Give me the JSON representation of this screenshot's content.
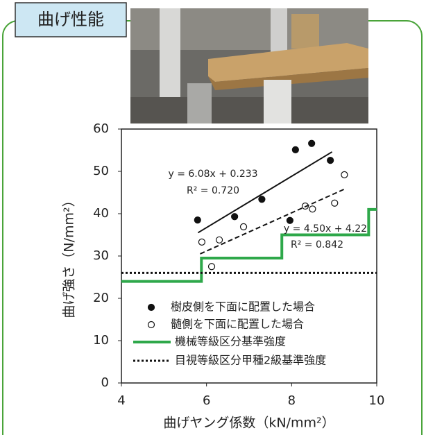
{
  "header": {
    "title": "曲げ性能"
  },
  "chart_data": {
    "type": "scatter",
    "xlabel": "曲げヤング係数（kN/mm²）",
    "ylabel": "曲げ強さ（N/mm²）",
    "xlim": [
      4,
      10
    ],
    "xticks": [
      4,
      6,
      8,
      10
    ],
    "ylim": [
      0,
      60
    ],
    "yticks": [
      0,
      10,
      20,
      30,
      40,
      50,
      60
    ],
    "annotations": [
      "y = 6.08x + 0.233",
      "R² = 0.720",
      "y = 4.50x + 4.22",
      "R² = 0.842"
    ],
    "series": [
      {
        "name": "樹皮側を下面に配置した場合",
        "color": "#111111",
        "marker": "filled",
        "x": [
          5.79,
          6.66,
          7.3,
          7.96,
          8.09,
          8.47,
          8.91
        ],
        "values": [
          38.5,
          39.3,
          43.4,
          38.4,
          55.1,
          56.6,
          52.6
        ]
      },
      {
        "name": "髄側を下面に配置した場合",
        "color": "#111111",
        "marker": "open",
        "x": [
          5.89,
          6.3,
          6.87,
          6.12,
          8.32,
          8.49,
          9.01,
          9.24
        ],
        "values": [
          33.3,
          33.8,
          36.9,
          27.5,
          41.8,
          41.1,
          42.5,
          49.2
        ]
      },
      {
        "name": "機械等級区分基準強度",
        "color": "#2ea84a",
        "dash": "solid",
        "width": 4,
        "x": [
          4,
          5.88,
          5.88,
          7.77,
          7.77,
          9.81,
          9.81,
          10
        ],
        "values": [
          24,
          24,
          29.5,
          29.5,
          35,
          35,
          41,
          41
        ]
      },
      {
        "name": "目視等級区分甲種2級基準強度",
        "color": "#111111",
        "dash": "dotted",
        "width": 3,
        "x": [
          4,
          10
        ],
        "values": [
          26,
          26
        ]
      },
      {
        "color": "#111111",
        "dash": "solid",
        "width": 2,
        "x": [
          5.8,
          8.95
        ],
        "values": [
          35.5,
          54.6
        ]
      },
      {
        "color": "#111111",
        "dash": "dashed",
        "width": 2,
        "x": [
          5.85,
          9.24
        ],
        "values": [
          30.5,
          45.8
        ]
      }
    ]
  }
}
